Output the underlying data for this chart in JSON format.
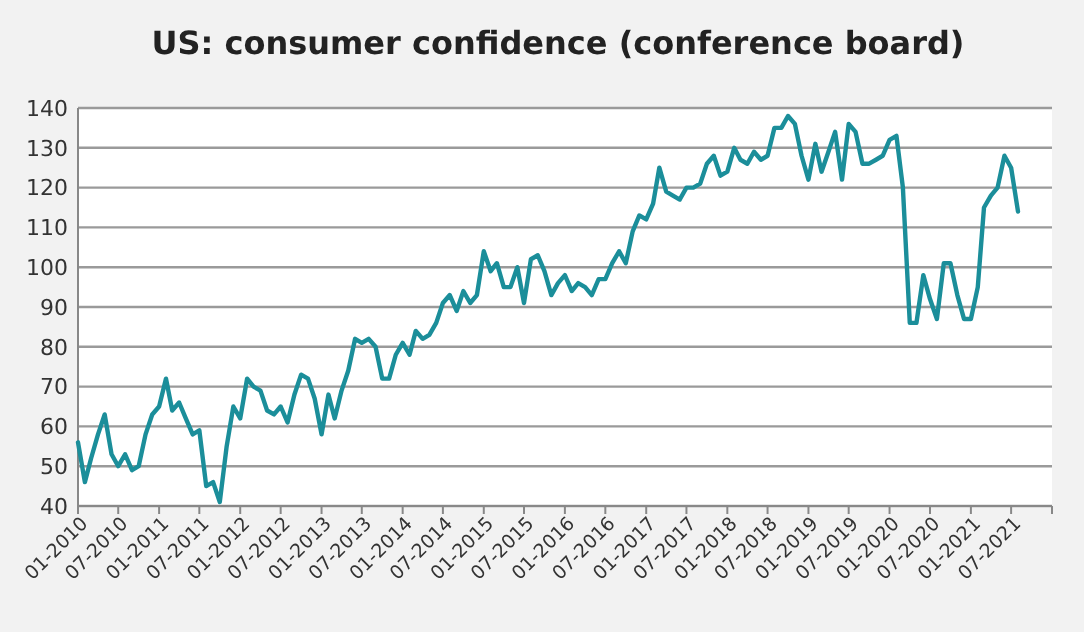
{
  "chart_data": {
    "type": "line",
    "title": "US: consumer confidence (conference board)",
    "x": [
      "2010-01",
      "2010-02",
      "2010-03",
      "2010-04",
      "2010-05",
      "2010-06",
      "2010-07",
      "2010-08",
      "2010-09",
      "2010-10",
      "2010-11",
      "2010-12",
      "2011-01",
      "2011-02",
      "2011-03",
      "2011-04",
      "2011-05",
      "2011-06",
      "2011-07",
      "2011-08",
      "2011-09",
      "2011-10",
      "2011-11",
      "2011-12",
      "2012-01",
      "2012-02",
      "2012-03",
      "2012-04",
      "2012-05",
      "2012-06",
      "2012-07",
      "2012-08",
      "2012-09",
      "2012-10",
      "2012-11",
      "2012-12",
      "2013-01",
      "2013-02",
      "2013-03",
      "2013-04",
      "2013-05",
      "2013-06",
      "2013-07",
      "2013-08",
      "2013-09",
      "2013-10",
      "2013-11",
      "2013-12",
      "2014-01",
      "2014-02",
      "2014-03",
      "2014-04",
      "2014-05",
      "2014-06",
      "2014-07",
      "2014-08",
      "2014-09",
      "2014-10",
      "2014-11",
      "2014-12",
      "2015-01",
      "2015-02",
      "2015-03",
      "2015-04",
      "2015-05",
      "2015-06",
      "2015-07",
      "2015-08",
      "2015-09",
      "2015-10",
      "2015-11",
      "2015-12",
      "2016-01",
      "2016-02",
      "2016-03",
      "2016-04",
      "2016-05",
      "2016-06",
      "2016-07",
      "2016-08",
      "2016-09",
      "2016-10",
      "2016-11",
      "2016-12",
      "2017-01",
      "2017-02",
      "2017-03",
      "2017-04",
      "2017-05",
      "2017-06",
      "2017-07",
      "2017-08",
      "2017-09",
      "2017-10",
      "2017-11",
      "2017-12",
      "2018-01",
      "2018-02",
      "2018-03",
      "2018-04",
      "2018-05",
      "2018-06",
      "2018-07",
      "2018-08",
      "2018-09",
      "2018-10",
      "2018-11",
      "2018-12",
      "2019-01",
      "2019-02",
      "2019-03",
      "2019-04",
      "2019-05",
      "2019-06",
      "2019-07",
      "2019-08",
      "2019-09",
      "2019-10",
      "2019-11",
      "2019-12",
      "2020-01",
      "2020-02",
      "2020-03",
      "2020-04",
      "2020-05",
      "2020-06",
      "2020-07",
      "2020-08",
      "2020-09",
      "2020-10",
      "2020-11",
      "2020-12",
      "2021-01",
      "2021-02",
      "2021-03",
      "2021-04",
      "2021-05",
      "2021-06",
      "2021-07",
      "2021-08"
    ],
    "series": [
      {
        "color": "#1b8e9a",
        "values": [
          56,
          46,
          52,
          58,
          63,
          53,
          50,
          53,
          49,
          50,
          58,
          63,
          65,
          72,
          64,
          66,
          62,
          58,
          59,
          45,
          46,
          41,
          55,
          65,
          62,
          72,
          70,
          69,
          64,
          63,
          65,
          61,
          68,
          73,
          72,
          67,
          58,
          68,
          62,
          69,
          74,
          82,
          81,
          82,
          80,
          72,
          72,
          78,
          81,
          78,
          84,
          82,
          83,
          86,
          91,
          93,
          89,
          94,
          91,
          93,
          104,
          99,
          101,
          95,
          95,
          100,
          91,
          102,
          103,
          99,
          93,
          96,
          98,
          94,
          96,
          95,
          93,
          97,
          97,
          101,
          104,
          101,
          109,
          113,
          112,
          116,
          125,
          119,
          118,
          117,
          120,
          120,
          121,
          126,
          128,
          123,
          124,
          130,
          127,
          126,
          129,
          127,
          128,
          135,
          135,
          138,
          136,
          128,
          122,
          131,
          124,
          129,
          134,
          122,
          136,
          134,
          126,
          126,
          127,
          128,
          132,
          133,
          120,
          86,
          86,
          98,
          92,
          87,
          101,
          101,
          93,
          87,
          87,
          95,
          115,
          118,
          120,
          128,
          125,
          114
        ]
      }
    ],
    "xlim": [
      "2010-01",
      "2022-01"
    ],
    "xticks": [
      {
        "value": "2010-01",
        "label": "01-2010"
      },
      {
        "value": "2010-07",
        "label": "07-2010"
      },
      {
        "value": "2011-01",
        "label": "01-2011"
      },
      {
        "value": "2011-07",
        "label": "07-2011"
      },
      {
        "value": "2012-01",
        "label": "01-2012"
      },
      {
        "value": "2012-07",
        "label": "07-2012"
      },
      {
        "value": "2013-01",
        "label": "01-2013"
      },
      {
        "value": "2013-07",
        "label": "07-2013"
      },
      {
        "value": "2014-01",
        "label": "01-2014"
      },
      {
        "value": "2014-07",
        "label": "07-2014"
      },
      {
        "value": "2015-01",
        "label": "01-2015"
      },
      {
        "value": "2015-07",
        "label": "07-2015"
      },
      {
        "value": "2016-01",
        "label": "01-2016"
      },
      {
        "value": "2016-07",
        "label": "07-2016"
      },
      {
        "value": "2017-01",
        "label": "01-2017"
      },
      {
        "value": "2017-07",
        "label": "07-2017"
      },
      {
        "value": "2018-01",
        "label": "01-2018"
      },
      {
        "value": "2018-07",
        "label": "07-2018"
      },
      {
        "value": "2019-01",
        "label": "01-2019"
      },
      {
        "value": "2019-07",
        "label": "07-2019"
      },
      {
        "value": "2020-01",
        "label": "01-2020"
      },
      {
        "value": "2020-07",
        "label": "07-2020"
      },
      {
        "value": "2021-01",
        "label": "01-2021"
      },
      {
        "value": "2021-07",
        "label": "07-2021"
      },
      {
        "value": "2022-01",
        "label": null
      }
    ],
    "ylim": [
      40,
      140
    ],
    "yticks": [
      40,
      50,
      60,
      70,
      80,
      90,
      100,
      110,
      120,
      130,
      140
    ],
    "grid": "y",
    "marker": "none",
    "line_style": "solid"
  }
}
